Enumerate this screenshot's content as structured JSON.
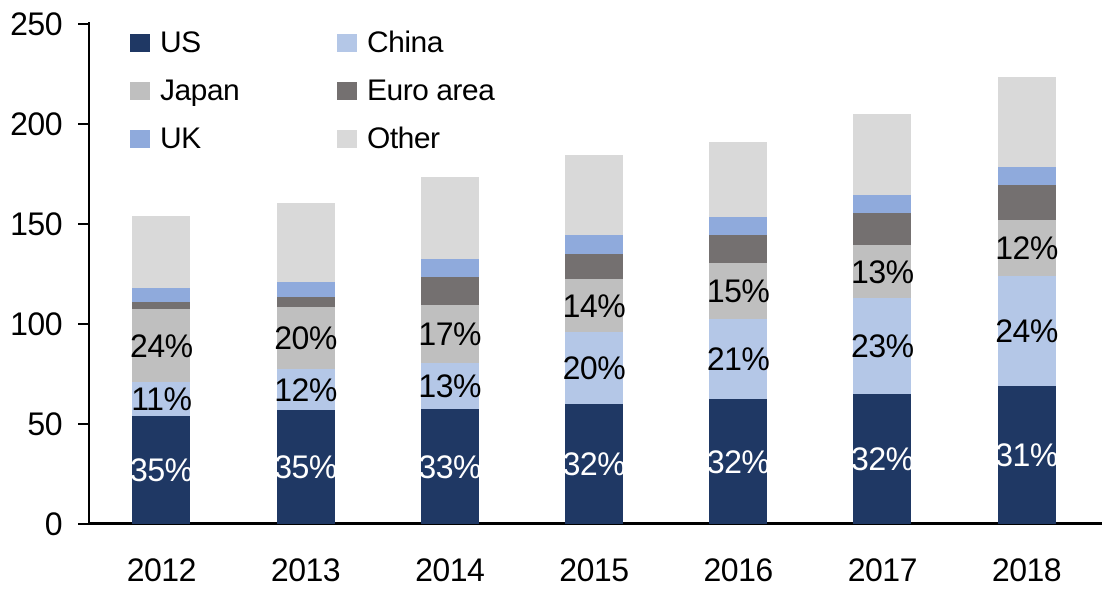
{
  "chart_data": {
    "type": "bar",
    "variant": "stacked-vertical",
    "title": "",
    "categories": [
      "2012",
      "2013",
      "2014",
      "2015",
      "2016",
      "2017",
      "2018"
    ],
    "series": [
      {
        "name": "US",
        "color": "#1F3864",
        "values": [
          54,
          57,
          57.5,
          60,
          62.5,
          65,
          69
        ],
        "labels": [
          "35%",
          "35%",
          "33%",
          "32%",
          "32%",
          "32%",
          "31%"
        ],
        "label_color": "#FFFFFF"
      },
      {
        "name": "China",
        "color": "#B4C7E7",
        "values": [
          17,
          20.5,
          23,
          36,
          40,
          48,
          55
        ],
        "labels": [
          "11%",
          "12%",
          "13%",
          "20%",
          "21%",
          "23%",
          "24%"
        ],
        "label_color": "#000000"
      },
      {
        "name": "Japan",
        "color": "#BFBFBF",
        "values": [
          36.5,
          31,
          29,
          26.5,
          28,
          26.5,
          28
        ],
        "labels": [
          "24%",
          "20%",
          "17%",
          "14%",
          "15%",
          "13%",
          "12%"
        ],
        "label_color": "#000000"
      },
      {
        "name": "Euro area",
        "color": "#747070",
        "values": [
          3.5,
          5,
          14,
          12.5,
          14,
          16,
          17.5
        ],
        "labels": null,
        "label_color": null
      },
      {
        "name": "UK",
        "color": "#8FAADC",
        "values": [
          7,
          7.5,
          9,
          9.5,
          9,
          9,
          9
        ],
        "labels": null,
        "label_color": null
      },
      {
        "name": "Other",
        "color": "#D9D9D9",
        "values": [
          36,
          39.5,
          41,
          40,
          37.5,
          40.5,
          45
        ],
        "labels": null,
        "label_color": null
      }
    ],
    "stack_order_bottom_to_top": [
      "US",
      "China",
      "Japan",
      "Euro area",
      "UK",
      "Other"
    ],
    "totals": [
      154,
      160.5,
      173.5,
      184.5,
      191,
      205,
      223.5
    ],
    "y_axis": {
      "min": 0,
      "max": 250,
      "step": 50,
      "tick_labels": [
        "0",
        "50",
        "100",
        "150",
        "200",
        "250"
      ]
    },
    "x_axis": {
      "tick_labels": [
        "2012",
        "2013",
        "2014",
        "2015",
        "2016",
        "2017",
        "2018"
      ]
    },
    "grid": "off",
    "legend": {
      "position": "top-left",
      "columns": 2,
      "items": [
        {
          "label": "US",
          "color": "#1F3864"
        },
        {
          "label": "China",
          "color": "#B4C7E7"
        },
        {
          "label": "Japan",
          "color": "#BFBFBF"
        },
        {
          "label": "Euro area",
          "color": "#747070"
        },
        {
          "label": "UK",
          "color": "#8FAADC"
        },
        {
          "label": "Other",
          "color": "#D9D9D9"
        }
      ]
    },
    "axis_color": "#000000",
    "background_color": "#FFFFFF"
  }
}
